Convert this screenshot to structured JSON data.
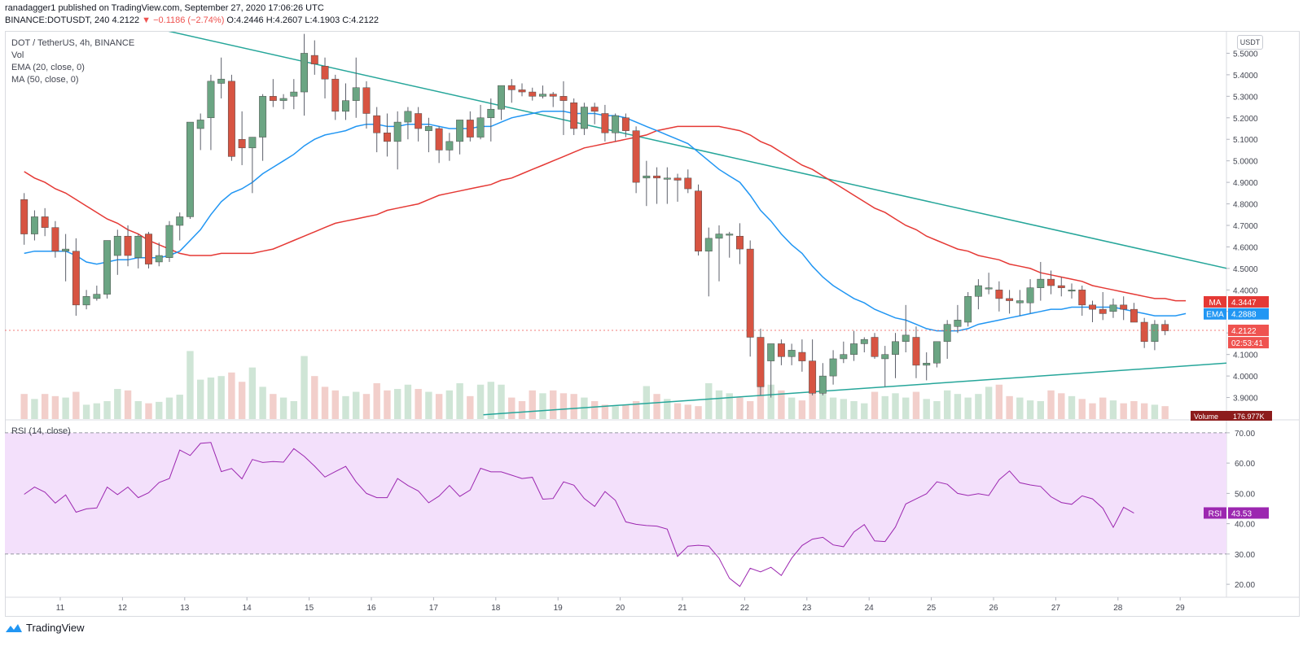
{
  "header": {
    "line1": "ranadagger1 published on TradingView.com, September 27, 2020 17:06:26 UTC",
    "symbol": "BINANCE:DOTUSDT, 240",
    "last": "4.2122",
    "change": "−0.1186 (−2.74%)",
    "ohlc": "O:4.2446 H:4.2607 L:4.1903 C:4.2122"
  },
  "legend": {
    "title": "DOT / TetherUS, 4h, BINANCE",
    "vol": "Vol",
    "ema": "EMA (20, close, 0)",
    "ma": "MA (50, close, 0)",
    "rsi": "RSI (14, close)"
  },
  "currency_button": "USDT",
  "footer": {
    "brand": "TradingView",
    "logo_icon": "tradingview-logo-icon"
  },
  "colors": {
    "up": "#6ba583",
    "down": "#d75442",
    "ema": "#2196f3",
    "ma": "#e53935",
    "trend": "#26a69a",
    "rsi": "#9c27b0",
    "rsi_band": "#f3e0fb",
    "vol_up": "#cfe5d6",
    "vol_down": "#f2cfcb"
  },
  "chart_data": [
    {
      "type": "candlestick",
      "title": "DOT / TetherUS, 4h, BINANCE",
      "ylim": [
        3.8,
        5.6
      ],
      "y_ticks": [
        "3.9000",
        "4.0000",
        "4.1000",
        "4.2000",
        "4.3000",
        "4.4000",
        "4.5000",
        "4.6000",
        "4.7000",
        "4.8000",
        "4.9000",
        "5.0000",
        "5.1000",
        "5.2000",
        "5.3000",
        "5.4000",
        "5.5000"
      ],
      "x_ticks": [
        "11",
        "12",
        "13",
        "14",
        "15",
        "16",
        "17",
        "18",
        "19",
        "20",
        "21",
        "22",
        "23",
        "24",
        "25",
        "26",
        "27",
        "28",
        "29"
      ],
      "x_tick_start_day": 11,
      "start_day": 10.42,
      "bar_days": 0.1667,
      "price_tags": [
        {
          "label": "MA",
          "value": "4.3447",
          "color": "#e53935"
        },
        {
          "label": "EMA",
          "value": "4.2888",
          "color": "#2196f3"
        },
        {
          "label": "",
          "value": "4.2122",
          "color": "#ef5350"
        },
        {
          "label": "",
          "value": "02:53:41",
          "color": "#ef5350",
          "anchor": 4.155
        }
      ],
      "candles": [
        [
          4.82,
          4.85,
          4.61,
          4.66
        ],
        [
          4.66,
          4.77,
          4.63,
          4.74
        ],
        [
          4.74,
          4.78,
          4.65,
          4.69
        ],
        [
          4.69,
          4.72,
          4.55,
          4.58
        ],
        [
          4.58,
          4.66,
          4.44,
          4.59
        ],
        [
          4.58,
          4.64,
          4.28,
          4.33
        ],
        [
          4.33,
          4.4,
          4.31,
          4.37
        ],
        [
          4.36,
          4.42,
          4.35,
          4.38
        ],
        [
          4.38,
          4.63,
          4.36,
          4.63
        ],
        [
          4.56,
          4.68,
          4.47,
          4.65
        ],
        [
          4.65,
          4.7,
          4.51,
          4.56
        ],
        [
          4.55,
          4.66,
          4.5,
          4.65
        ],
        [
          4.66,
          4.67,
          4.5,
          4.52
        ],
        [
          4.53,
          4.62,
          4.51,
          4.56
        ],
        [
          4.55,
          4.72,
          4.53,
          4.7
        ],
        [
          4.7,
          4.76,
          4.63,
          4.74
        ],
        [
          4.74,
          5.18,
          4.73,
          5.18
        ],
        [
          5.15,
          5.22,
          5.05,
          5.19
        ],
        [
          5.2,
          5.4,
          5.05,
          5.37
        ],
        [
          5.36,
          5.48,
          5.29,
          5.38
        ],
        [
          5.37,
          5.4,
          5.0,
          5.02
        ],
        [
          5.1,
          5.23,
          4.98,
          5.06
        ],
        [
          5.06,
          5.11,
          4.85,
          5.11
        ],
        [
          5.11,
          5.31,
          5.0,
          5.3
        ],
        [
          5.3,
          5.38,
          5.25,
          5.28
        ],
        [
          5.28,
          5.31,
          5.24,
          5.29
        ],
        [
          5.3,
          5.38,
          5.24,
          5.32
        ],
        [
          5.32,
          5.59,
          5.21,
          5.5
        ],
        [
          5.49,
          5.56,
          5.4,
          5.45
        ],
        [
          5.44,
          5.48,
          5.29,
          5.38
        ],
        [
          5.38,
          5.4,
          5.19,
          5.23
        ],
        [
          5.23,
          5.36,
          5.19,
          5.28
        ],
        [
          5.28,
          5.48,
          5.2,
          5.34
        ],
        [
          5.34,
          5.37,
          5.15,
          5.22
        ],
        [
          5.21,
          5.25,
          5.04,
          5.13
        ],
        [
          5.13,
          5.22,
          5.02,
          5.09
        ],
        [
          5.09,
          5.23,
          4.96,
          5.18
        ],
        [
          5.18,
          5.25,
          5.1,
          5.23
        ],
        [
          5.22,
          5.25,
          5.09,
          5.15
        ],
        [
          5.14,
          5.2,
          5.04,
          5.16
        ],
        [
          5.15,
          5.16,
          4.99,
          5.05
        ],
        [
          5.05,
          5.13,
          5.0,
          5.09
        ],
        [
          5.09,
          5.19,
          5.03,
          5.19
        ],
        [
          5.19,
          5.23,
          5.09,
          5.11
        ],
        [
          5.11,
          5.26,
          5.1,
          5.2
        ],
        [
          5.2,
          5.29,
          5.09,
          5.24
        ],
        [
          5.24,
          5.35,
          5.19,
          5.35
        ],
        [
          5.35,
          5.38,
          5.27,
          5.33
        ],
        [
          5.33,
          5.36,
          5.3,
          5.32
        ],
        [
          5.32,
          5.34,
          5.28,
          5.3
        ],
        [
          5.3,
          5.35,
          5.29,
          5.31
        ],
        [
          5.31,
          5.32,
          5.25,
          5.3
        ],
        [
          5.3,
          5.37,
          5.12,
          5.28
        ],
        [
          5.27,
          5.29,
          5.12,
          5.15
        ],
        [
          5.15,
          5.27,
          5.12,
          5.25
        ],
        [
          5.25,
          5.27,
          5.17,
          5.23
        ],
        [
          5.22,
          5.26,
          5.09,
          5.13
        ],
        [
          5.13,
          5.22,
          5.09,
          5.21
        ],
        [
          5.2,
          5.22,
          5.11,
          5.14
        ],
        [
          5.14,
          5.16,
          4.85,
          4.9
        ],
        [
          4.92,
          5.0,
          4.79,
          4.93
        ],
        [
          4.93,
          4.97,
          4.8,
          4.92
        ],
        [
          4.92,
          4.97,
          4.8,
          4.92
        ],
        [
          4.92,
          4.94,
          4.81,
          4.91
        ],
        [
          4.92,
          4.96,
          4.85,
          4.87
        ],
        [
          4.86,
          4.89,
          4.56,
          4.58
        ],
        [
          4.58,
          4.69,
          4.37,
          4.64
        ],
        [
          4.64,
          4.7,
          4.44,
          4.66
        ],
        [
          4.66,
          4.67,
          4.55,
          4.66
        ],
        [
          4.65,
          4.71,
          4.52,
          4.59
        ],
        [
          4.59,
          4.63,
          4.09,
          4.18
        ],
        [
          4.18,
          4.22,
          3.91,
          3.95
        ],
        [
          4.07,
          4.15,
          3.9,
          4.15
        ],
        [
          4.15,
          4.17,
          4.05,
          4.09
        ],
        [
          4.09,
          4.15,
          4.05,
          4.12
        ],
        [
          4.11,
          4.17,
          4.02,
          4.07
        ],
        [
          4.07,
          4.17,
          3.91,
          3.92
        ],
        [
          3.92,
          4.06,
          3.91,
          4.0
        ],
        [
          4.0,
          4.12,
          3.96,
          4.08
        ],
        [
          4.08,
          4.16,
          4.06,
          4.1
        ],
        [
          4.1,
          4.21,
          4.07,
          4.15
        ],
        [
          4.15,
          4.18,
          4.11,
          4.17
        ],
        [
          4.18,
          4.2,
          4.08,
          4.09
        ],
        [
          4.08,
          4.14,
          3.95,
          4.1
        ],
        [
          4.1,
          4.2,
          3.99,
          4.16
        ],
        [
          4.16,
          4.33,
          4.11,
          4.19
        ],
        [
          4.18,
          4.23,
          3.99,
          4.05
        ],
        [
          4.05,
          4.11,
          3.98,
          4.06
        ],
        [
          4.06,
          4.16,
          4.04,
          4.16
        ],
        [
          4.16,
          4.26,
          4.08,
          4.24
        ],
        [
          4.23,
          4.33,
          4.2,
          4.26
        ],
        [
          4.25,
          4.39,
          4.23,
          4.37
        ],
        [
          4.37,
          4.45,
          4.31,
          4.42
        ],
        [
          4.41,
          4.48,
          4.38,
          4.41
        ],
        [
          4.4,
          4.44,
          4.3,
          4.36
        ],
        [
          4.36,
          4.4,
          4.29,
          4.35
        ],
        [
          4.34,
          4.4,
          4.28,
          4.35
        ],
        [
          4.34,
          4.45,
          4.29,
          4.41
        ],
        [
          4.41,
          4.53,
          4.35,
          4.45
        ],
        [
          4.45,
          4.49,
          4.38,
          4.42
        ],
        [
          4.42,
          4.46,
          4.37,
          4.41
        ],
        [
          4.4,
          4.43,
          4.36,
          4.4
        ],
        [
          4.4,
          4.42,
          4.28,
          4.33
        ],
        [
          4.33,
          4.35,
          4.25,
          4.31
        ],
        [
          4.31,
          4.39,
          4.26,
          4.29
        ],
        [
          4.3,
          4.36,
          4.27,
          4.33
        ],
        [
          4.33,
          4.37,
          4.26,
          4.31
        ],
        [
          4.31,
          4.34,
          4.25,
          4.25
        ],
        [
          4.25,
          4.27,
          4.13,
          4.16
        ],
        [
          4.16,
          4.26,
          4.12,
          4.24
        ],
        [
          4.24,
          4.26,
          4.19,
          4.21
        ]
      ],
      "volume_label": "Volume",
      "volume_last": "176.977K",
      "volume_levels": [
        0.35,
        0.28,
        0.35,
        0.32,
        0.3,
        0.38,
        0.2,
        0.22,
        0.25,
        0.42,
        0.4,
        0.25,
        0.22,
        0.24,
        0.3,
        0.34,
        0.95,
        0.55,
        0.58,
        0.6,
        0.65,
        0.52,
        0.72,
        0.45,
        0.35,
        0.3,
        0.25,
        0.88,
        0.6,
        0.45,
        0.4,
        0.32,
        0.38,
        0.35,
        0.5,
        0.4,
        0.42,
        0.48,
        0.42,
        0.38,
        0.35,
        0.4,
        0.5,
        0.32,
        0.48,
        0.52,
        0.48,
        0.3,
        0.25,
        0.4,
        0.36,
        0.4,
        0.36,
        0.35,
        0.3,
        0.25,
        0.2,
        0.18,
        0.2,
        0.25,
        0.46,
        0.35,
        0.28,
        0.22,
        0.2,
        0.18,
        0.5,
        0.4,
        0.36,
        0.3,
        0.25,
        0.6,
        0.48,
        0.4,
        0.3,
        0.26,
        0.45,
        0.4,
        0.3,
        0.28,
        0.25,
        0.22,
        0.38,
        0.32,
        0.36,
        0.3,
        0.38,
        0.28,
        0.25,
        0.4,
        0.35,
        0.3,
        0.35,
        0.45,
        0.48,
        0.32,
        0.3,
        0.26,
        0.25,
        0.4,
        0.36,
        0.32,
        0.28,
        0.22,
        0.3,
        0.26,
        0.22,
        0.25,
        0.22,
        0.2,
        0.18,
        0.16,
        0.15
      ],
      "ema_20": [
        4.57,
        4.58,
        4.58,
        4.58,
        4.58,
        4.56,
        4.53,
        4.52,
        4.53,
        4.54,
        4.54,
        4.55,
        4.55,
        4.55,
        4.56,
        4.58,
        4.63,
        4.68,
        4.75,
        4.81,
        4.85,
        4.87,
        4.9,
        4.94,
        4.97,
        5.0,
        5.03,
        5.07,
        5.1,
        5.12,
        5.13,
        5.14,
        5.16,
        5.17,
        5.17,
        5.16,
        5.16,
        5.17,
        5.17,
        5.17,
        5.16,
        5.15,
        5.15,
        5.15,
        5.16,
        5.16,
        5.18,
        5.2,
        5.21,
        5.22,
        5.23,
        5.23,
        5.23,
        5.22,
        5.22,
        5.22,
        5.21,
        5.21,
        5.2,
        5.18,
        5.16,
        5.14,
        5.12,
        5.1,
        5.08,
        5.04,
        5.0,
        4.96,
        4.93,
        4.9,
        4.84,
        4.77,
        4.72,
        4.66,
        4.61,
        4.57,
        4.51,
        4.46,
        4.42,
        4.39,
        4.36,
        4.34,
        4.31,
        4.29,
        4.27,
        4.26,
        4.24,
        4.22,
        4.21,
        4.21,
        4.21,
        4.22,
        4.24,
        4.25,
        4.26,
        4.27,
        4.28,
        4.29,
        4.3,
        4.31,
        4.31,
        4.32,
        4.32,
        4.32,
        4.32,
        4.32,
        4.31,
        4.3,
        4.29,
        4.28,
        4.28,
        4.28,
        4.29
      ],
      "ma_50": [
        4.95,
        4.92,
        4.9,
        4.87,
        4.85,
        4.82,
        4.79,
        4.76,
        4.73,
        4.71,
        4.68,
        4.66,
        4.63,
        4.61,
        4.59,
        4.57,
        4.56,
        4.56,
        4.56,
        4.57,
        4.57,
        4.57,
        4.57,
        4.58,
        4.59,
        4.61,
        4.63,
        4.65,
        4.67,
        4.69,
        4.71,
        4.72,
        4.73,
        4.74,
        4.75,
        4.77,
        4.78,
        4.79,
        4.8,
        4.82,
        4.84,
        4.85,
        4.86,
        4.87,
        4.88,
        4.89,
        4.91,
        4.92,
        4.94,
        4.96,
        4.98,
        5.0,
        5.02,
        5.04,
        5.06,
        5.07,
        5.08,
        5.09,
        5.1,
        5.11,
        5.12,
        5.14,
        5.15,
        5.16,
        5.16,
        5.16,
        5.16,
        5.16,
        5.15,
        5.14,
        5.12,
        5.09,
        5.07,
        5.04,
        5.01,
        4.98,
        4.96,
        4.93,
        4.9,
        4.87,
        4.84,
        4.81,
        4.78,
        4.76,
        4.73,
        4.7,
        4.68,
        4.65,
        4.63,
        4.61,
        4.59,
        4.58,
        4.56,
        4.55,
        4.54,
        4.52,
        4.51,
        4.5,
        4.48,
        4.47,
        4.46,
        4.45,
        4.44,
        4.42,
        4.41,
        4.4,
        4.39,
        4.38,
        4.37,
        4.36,
        4.36,
        4.35,
        4.35
      ],
      "trendlines": [
        {
          "name": "descending-resistance",
          "from": [
            11.7,
            5.67
          ],
          "to": [
            29.75,
            4.5
          ]
        },
        {
          "name": "ascending-support",
          "from": [
            17.8,
            3.82
          ],
          "to": [
            29.75,
            4.06
          ]
        }
      ]
    },
    {
      "type": "line",
      "title": "RSI (14, close)",
      "ylim": [
        16,
        74
      ],
      "y_ticks": [
        "20.00",
        "30.00",
        "40.00",
        "50.00",
        "60.00",
        "70.00"
      ],
      "band": [
        30,
        70
      ],
      "last_label": "RSI",
      "last_value": "43.53",
      "values": [
        49.7,
        52.1,
        50.4,
        46.8,
        49.5,
        43.8,
        44.9,
        45.2,
        52.1,
        49.6,
        52.1,
        48.6,
        50.2,
        53.6,
        54.9,
        64.3,
        62.5,
        66.5,
        66.8,
        57.2,
        58.2,
        54.8,
        61.2,
        60.2,
        60.5,
        60.3,
        64.8,
        62.2,
        59.0,
        55.4,
        57.2,
        58.9,
        53.8,
        50.0,
        48.6,
        48.6,
        54.9,
        52.6,
        50.8,
        46.9,
        49.1,
        52.6,
        49.0,
        51.1,
        58.3,
        57.1,
        57.1,
        56.0,
        54.9,
        55.3,
        48.1,
        48.3,
        53.8,
        52.7,
        48.3,
        45.7,
        50.6,
        47.7,
        40.6,
        39.8,
        39.4,
        39.2,
        38.2,
        29.2,
        32.6,
        32.9,
        32.6,
        28.6,
        22.0,
        19.3,
        25.3,
        24.1,
        25.6,
        22.9,
        28.6,
        32.8,
        34.9,
        35.5,
        33.0,
        32.4,
        37.3,
        39.7,
        34.3,
        34.1,
        38.9,
        46.5,
        48.2,
        49.9,
        53.8,
        53.0,
        50.0,
        49.3,
        49.9,
        49.3,
        54.5,
        57.4,
        53.5,
        52.8,
        52.3,
        48.9,
        47.0,
        46.4,
        49.2,
        48.2,
        45.1,
        38.8,
        45.4,
        43.5
      ]
    }
  ]
}
